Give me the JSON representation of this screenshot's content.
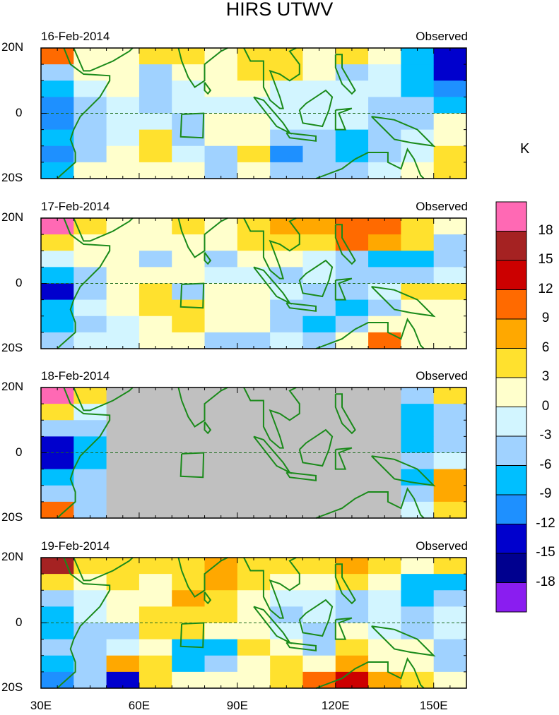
{
  "chart_data": {
    "type": "heatmap",
    "title": "HIRS UTWV",
    "units": "K",
    "xlim": [
      30,
      160
    ],
    "ylim": [
      -20,
      20
    ],
    "xticks": [
      {
        "v": 30,
        "l": "30E"
      },
      {
        "v": 60,
        "l": "60E"
      },
      {
        "v": 90,
        "l": "90E"
      },
      {
        "v": 120,
        "l": "120E"
      },
      {
        "v": 150,
        "l": "150E"
      }
    ],
    "yticks": [
      {
        "v": 20,
        "l": "20N"
      },
      {
        "v": 0,
        "l": "0"
      },
      {
        "v": -20,
        "l": "20S"
      }
    ],
    "grid_lon_edges": [
      30,
      40,
      50,
      60,
      70,
      80,
      90,
      100,
      110,
      120,
      130,
      140,
      150,
      160
    ],
    "grid_lat_edges": [
      20,
      15,
      10,
      5,
      0,
      -5,
      -10,
      -15,
      -20
    ],
    "levels": [
      -18,
      -15,
      -12,
      -9,
      -6,
      -3,
      0,
      3,
      6,
      9,
      12,
      15,
      18
    ],
    "colors": [
      "#8a1df0",
      "#00008f",
      "#0000cd",
      "#1e90ff",
      "#00bfff",
      "#a0d2ff",
      "#d2f5ff",
      "#ffffcc",
      "#ffe12e",
      "#ffa800",
      "#ff6a00",
      "#cc0000",
      "#a52222",
      "#ff69b4"
    ],
    "missing_color": "#c0c0c0",
    "coast_color": "#1a8a1a",
    "panels": [
      {
        "date": "16-Feb-2014",
        "label": "Observed",
        "values": [
          [
            10,
            2,
            2,
            4,
            5,
            2,
            5,
            5,
            2,
            4,
            1,
            -7,
            -13
          ],
          [
            -4,
            1,
            1,
            -4,
            2,
            1,
            4,
            4,
            1,
            -4,
            -2,
            -8,
            -13
          ],
          [
            -7,
            -1,
            1,
            -5,
            -2,
            1,
            1,
            -2,
            -2,
            -2,
            -2,
            -8,
            -10
          ],
          [
            -10,
            -4,
            -1,
            -4,
            -1,
            -1,
            -1,
            -2,
            -2,
            -1,
            -4,
            -4,
            -7
          ],
          [
            -10,
            -5,
            -2,
            -1,
            -4,
            2,
            2,
            -2,
            -1,
            -1,
            -4,
            -4,
            1
          ],
          [
            -8,
            -4,
            -2,
            4,
            -4,
            2,
            2,
            -5,
            -5,
            -8,
            -4,
            -2,
            2
          ],
          [
            -10,
            -5,
            1,
            4,
            -2,
            -4,
            4,
            -10,
            -4,
            -8,
            -5,
            -1,
            4
          ],
          [
            -8,
            1,
            1,
            2,
            2,
            -4,
            1,
            -5,
            -5,
            -4,
            -1,
            1,
            4
          ]
        ]
      },
      {
        "date": "17-Feb-2014",
        "label": "Observed",
        "values": [
          [
            18,
            4,
            1,
            1,
            4,
            2,
            4,
            7,
            7,
            10,
            10,
            4,
            1
          ],
          [
            5,
            2,
            1,
            1,
            1,
            1,
            5,
            5,
            4,
            10,
            7,
            4,
            -4
          ],
          [
            -2,
            1,
            1,
            -4,
            1,
            -4,
            2,
            2,
            -2,
            -4,
            -7,
            -7,
            -4
          ],
          [
            -8,
            -4,
            1,
            1,
            1,
            -2,
            -2,
            -4,
            -2,
            -5,
            -4,
            -5,
            -2
          ],
          [
            -13,
            -4,
            1,
            4,
            -4,
            1,
            1,
            -2,
            -4,
            -4,
            -2,
            5,
            4
          ],
          [
            -7,
            -2,
            2,
            5,
            4,
            1,
            1,
            -4,
            -5,
            -7,
            -5,
            2,
            1
          ],
          [
            -8,
            -4,
            -2,
            2,
            5,
            1,
            1,
            -5,
            -8,
            -4,
            1,
            1,
            1
          ],
          [
            -5,
            -2,
            -2,
            1,
            1,
            -4,
            -4,
            -2,
            -5,
            2,
            10,
            1,
            1
          ]
        ]
      },
      {
        "date": "18-Feb-2014",
        "label": "Observed",
        "values": [
          [
            18,
            5,
            null,
            null,
            null,
            null,
            null,
            null,
            null,
            null,
            null,
            -4,
            4
          ],
          [
            5,
            -2,
            null,
            null,
            null,
            null,
            null,
            null,
            null,
            null,
            null,
            -7,
            -4
          ],
          [
            -5,
            -4,
            null,
            null,
            null,
            null,
            null,
            null,
            null,
            null,
            null,
            -7,
            -5
          ],
          [
            -13,
            -7,
            null,
            null,
            null,
            null,
            null,
            null,
            null,
            null,
            null,
            -8,
            -4
          ],
          [
            -15,
            -8,
            null,
            null,
            null,
            null,
            null,
            null,
            null,
            null,
            null,
            -4,
            -2
          ],
          [
            -8,
            -4,
            null,
            null,
            null,
            null,
            null,
            null,
            null,
            null,
            null,
            -7,
            7
          ],
          [
            -5,
            -4,
            null,
            null,
            null,
            null,
            null,
            null,
            null,
            null,
            null,
            -5,
            8
          ],
          [
            10,
            -4,
            null,
            null,
            null,
            null,
            null,
            null,
            null,
            null,
            null,
            -2,
            5
          ]
        ]
      },
      {
        "date": "19-Feb-2014",
        "label": "Observed",
        "values": [
          [
            17,
            5,
            4,
            5,
            4,
            7,
            4,
            4,
            4,
            7,
            5,
            2,
            5
          ],
          [
            5,
            2,
            4,
            2,
            5,
            7,
            4,
            2,
            1,
            5,
            2,
            -7,
            -8
          ],
          [
            -4,
            -2,
            1,
            2,
            7,
            4,
            2,
            -2,
            -2,
            -4,
            -2,
            -7,
            -4
          ],
          [
            -7,
            -2,
            1,
            5,
            5,
            4,
            1,
            -4,
            -2,
            -4,
            -2,
            -4,
            -2
          ],
          [
            -8,
            -4,
            -4,
            5,
            4,
            1,
            2,
            -2,
            -4,
            1,
            -2,
            -4,
            -2
          ],
          [
            -5,
            -4,
            -2,
            1,
            -7,
            -7,
            4,
            1,
            -4,
            4,
            1,
            1,
            -4
          ],
          [
            -7,
            -4,
            7,
            4,
            -8,
            -5,
            2,
            4,
            2,
            7,
            2,
            1,
            -4
          ],
          [
            -10,
            -5,
            -15,
            4,
            2,
            1,
            1,
            5,
            10,
            14,
            7,
            4,
            1
          ]
        ]
      }
    ],
    "colorbar_labels": [
      "18",
      "15",
      "12",
      "9",
      "6",
      "3",
      "0",
      "-3",
      "-6",
      "-9",
      "-12",
      "-15",
      "-18"
    ]
  }
}
